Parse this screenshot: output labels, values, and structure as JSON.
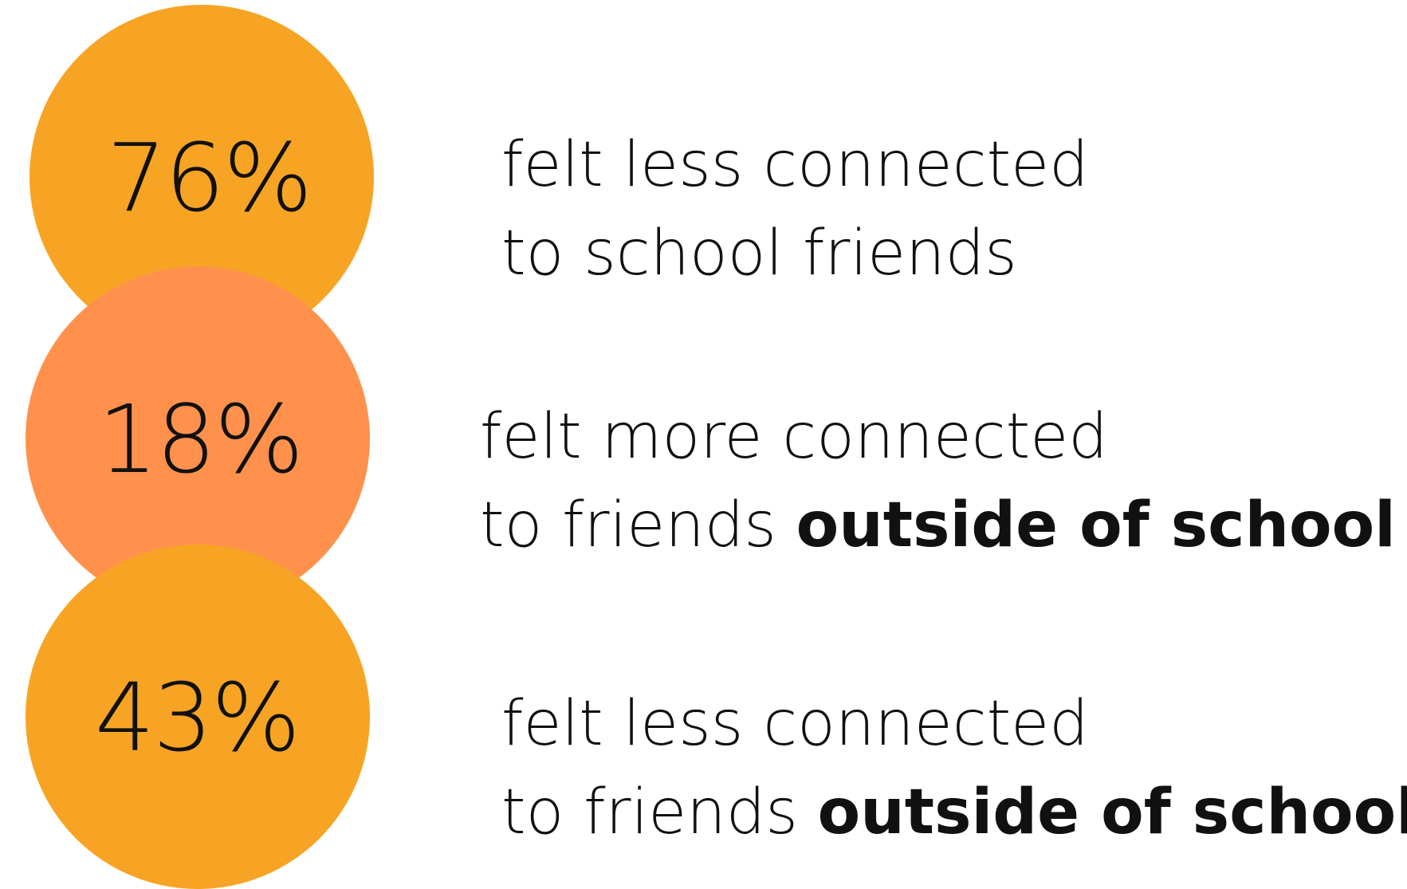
{
  "stats": [
    {
      "percent": "76%",
      "line1": "felt less connected",
      "line2_prefix": "to school friends",
      "line2_bold": "",
      "color": "#F7A424"
    },
    {
      "percent": "18%",
      "line1": "felt more connected",
      "line2_prefix": "to friends ",
      "line2_bold": "outside of school",
      "color": "#FF914D"
    },
    {
      "percent": "43%",
      "line1": "felt less connected",
      "line2_prefix": "to friends ",
      "line2_bold": "outside of school",
      "color": "#F7A424"
    }
  ]
}
